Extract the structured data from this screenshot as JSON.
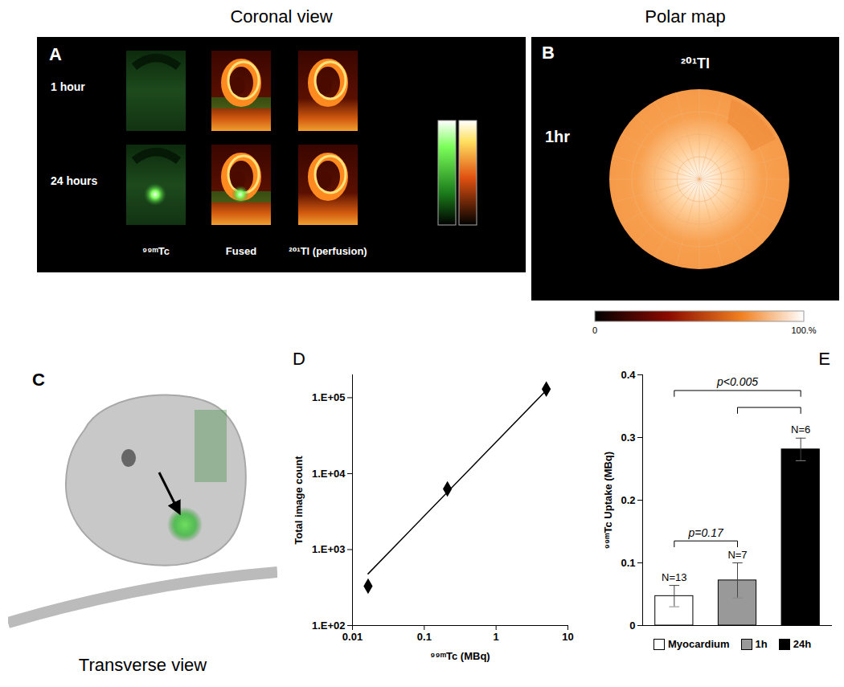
{
  "panels": {
    "A": {
      "panel": "A",
      "header": "Coronal view",
      "rows": [
        "1 hour",
        "24 hours"
      ],
      "columns": [
        "⁹⁹ᵐTc",
        "Fused",
        "²⁰¹Tl (perfusion)"
      ]
    },
    "B": {
      "panel": "B",
      "header": "Polar map",
      "tracer": "²⁰¹Tl",
      "time": "1hr",
      "colorbar": {
        "range": [
          0,
          100
        ],
        "ticks": [
          0,
          {
            "value": 100,
            "label": "100.%"
          }
        ]
      }
    },
    "C": {
      "panel": "C",
      "caption": "Transverse view"
    }
  },
  "chart_data": [
    {
      "type": "scatter",
      "panel": "D",
      "x_label": "⁹⁹ᵐTc (MBq)",
      "y_label": "Total image count",
      "log": true,
      "grid": false,
      "xlim": [
        0.01,
        10
      ],
      "xticks": [
        0.01,
        0.1,
        1,
        10
      ],
      "ylim": [
        100,
        200000
      ],
      "yticks": [
        {
          "value": 100,
          "label": "1.E+02"
        },
        {
          "value": 1000,
          "label": "1.E+03"
        },
        {
          "value": 10000,
          "label": "1.E+04"
        },
        {
          "value": 100000,
          "label": "1.E+05"
        }
      ],
      "series": [
        {
          "type": "scatter",
          "marker": "diamond",
          "color": "#000000",
          "x": [
            0.0165,
            0.21,
            5
          ],
          "values": [
            330,
            6300,
            130000
          ]
        },
        {
          "type": "line",
          "line_style": "solid",
          "color": "#000000",
          "x": [
            0.0165,
            5
          ],
          "values": [
            480,
            125000
          ]
        }
      ]
    },
    {
      "type": "bar",
      "panel": "E",
      "y_label": "⁹⁹ᵐTc Uptake (MBq)",
      "grid": false,
      "categories": [
        "Myocardium",
        "1h",
        "24h"
      ],
      "values": [
        0.047,
        0.072,
        0.281
      ],
      "errors": [
        0.017,
        0.028,
        0.018
      ],
      "n_labels": [
        "N=13",
        "N=7",
        "N=6"
      ],
      "colors": [
        "#ffffff",
        "#999999",
        "#000000"
      ],
      "ylim": [
        0,
        0.4
      ],
      "yticks": [
        0,
        0.1,
        0.2,
        0.3,
        0.4
      ],
      "tick_labels": "y",
      "legend": "bottom",
      "annotations": [
        {
          "text": "p<0.005",
          "from": 0,
          "to": 2,
          "y": 0.375
        },
        {
          "from": 1,
          "to": 2,
          "y": 0.348
        },
        {
          "text": "p=0.17",
          "from": 0,
          "to": 1,
          "y": 0.135
        }
      ]
    }
  ]
}
